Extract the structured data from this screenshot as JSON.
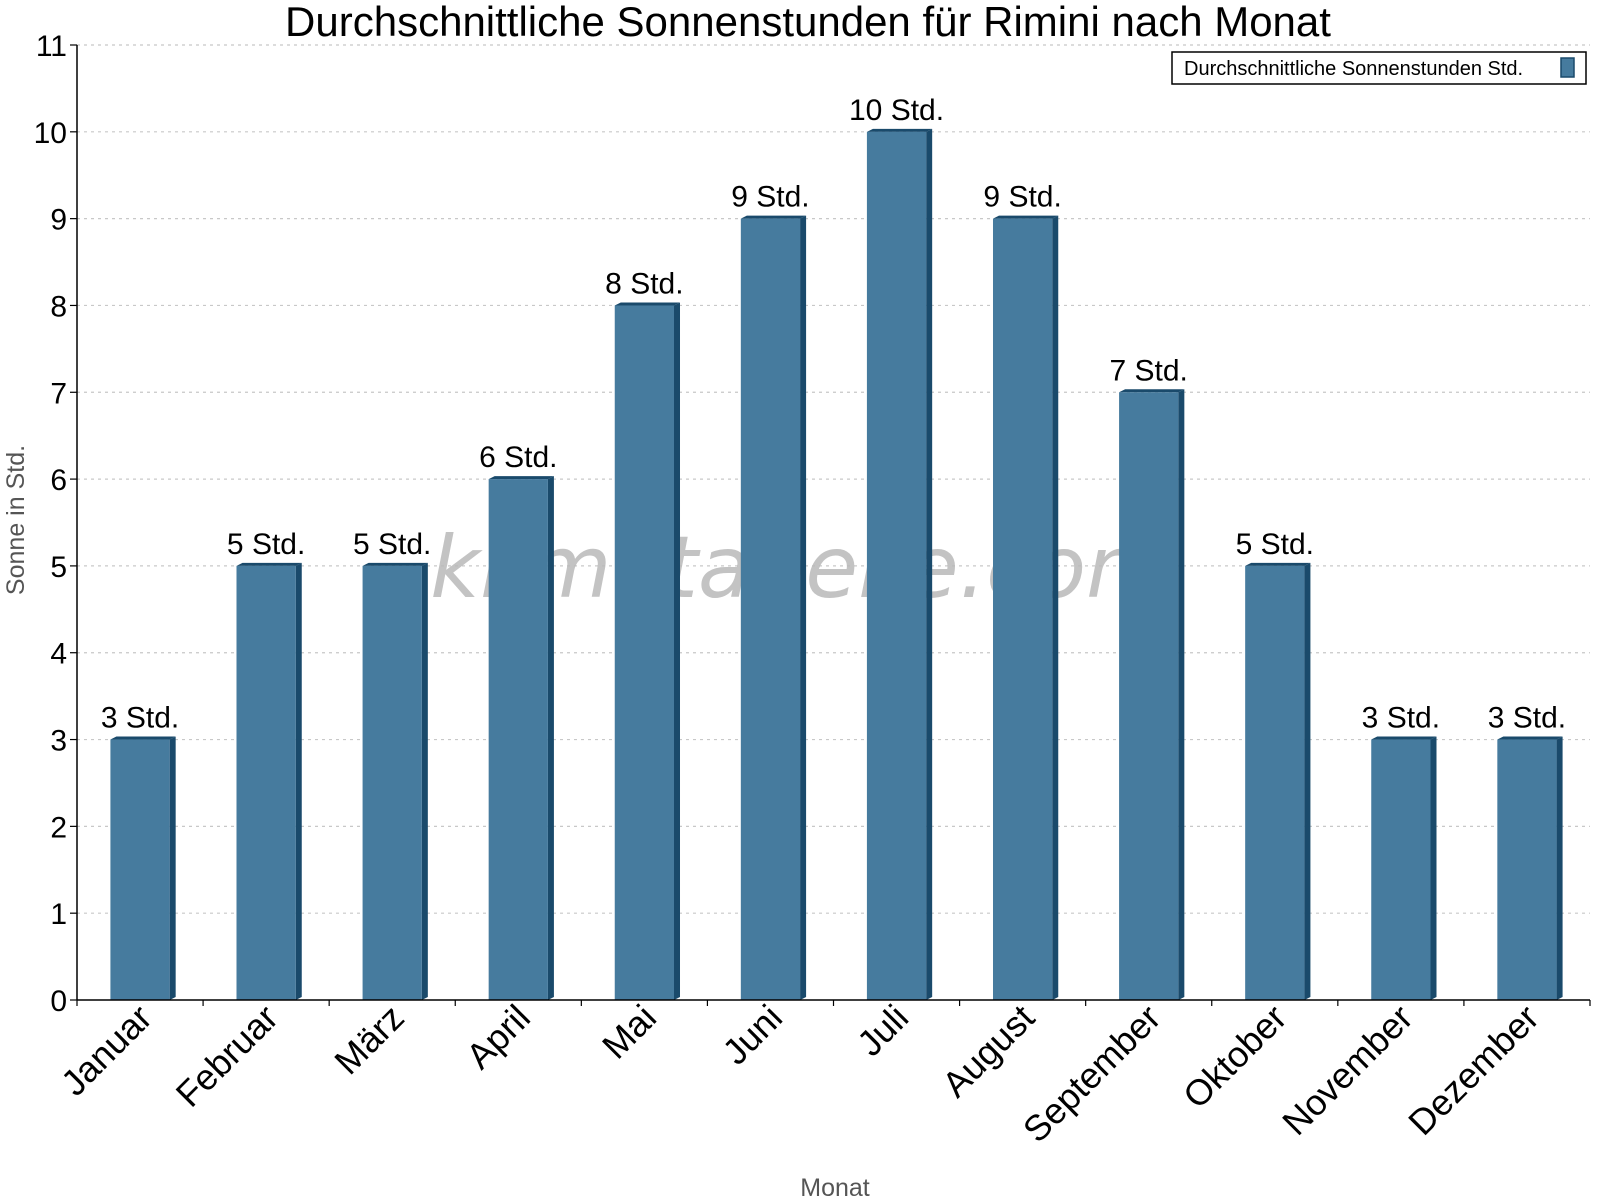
{
  "watermark": "klimatabelle.com",
  "colors": {
    "bar": "#467b9e",
    "bar_side": "#1a4a6b",
    "grid": "#c8c8c8"
  },
  "chart_data": {
    "type": "bar",
    "title": "Durchschnittliche Sonnenstunden für Rimini nach Monat",
    "xlabel": "Monat",
    "ylabel": "Sonne in Std.",
    "ylim": [
      0,
      11
    ],
    "yticks": [
      0,
      1,
      2,
      3,
      4,
      5,
      6,
      7,
      8,
      9,
      10,
      11
    ],
    "grid": true,
    "legend_position": "top-right",
    "categories": [
      "Januar",
      "Februar",
      "März",
      "April",
      "Mai",
      "Juni",
      "Juli",
      "August",
      "September",
      "Oktober",
      "November",
      "Dezember"
    ],
    "series": [
      {
        "name": "Durchschnittliche Sonnenstunden Std.",
        "values": [
          3,
          5,
          5,
          6,
          8,
          9,
          10,
          9,
          7,
          5,
          3,
          3
        ],
        "labels": [
          "3 Std.",
          "5 Std.",
          "5 Std.",
          "6 Std.",
          "8 Std.",
          "9 Std.",
          "10 Std.",
          "9 Std.",
          "7 Std.",
          "5 Std.",
          "3 Std.",
          "3 Std."
        ]
      }
    ]
  }
}
